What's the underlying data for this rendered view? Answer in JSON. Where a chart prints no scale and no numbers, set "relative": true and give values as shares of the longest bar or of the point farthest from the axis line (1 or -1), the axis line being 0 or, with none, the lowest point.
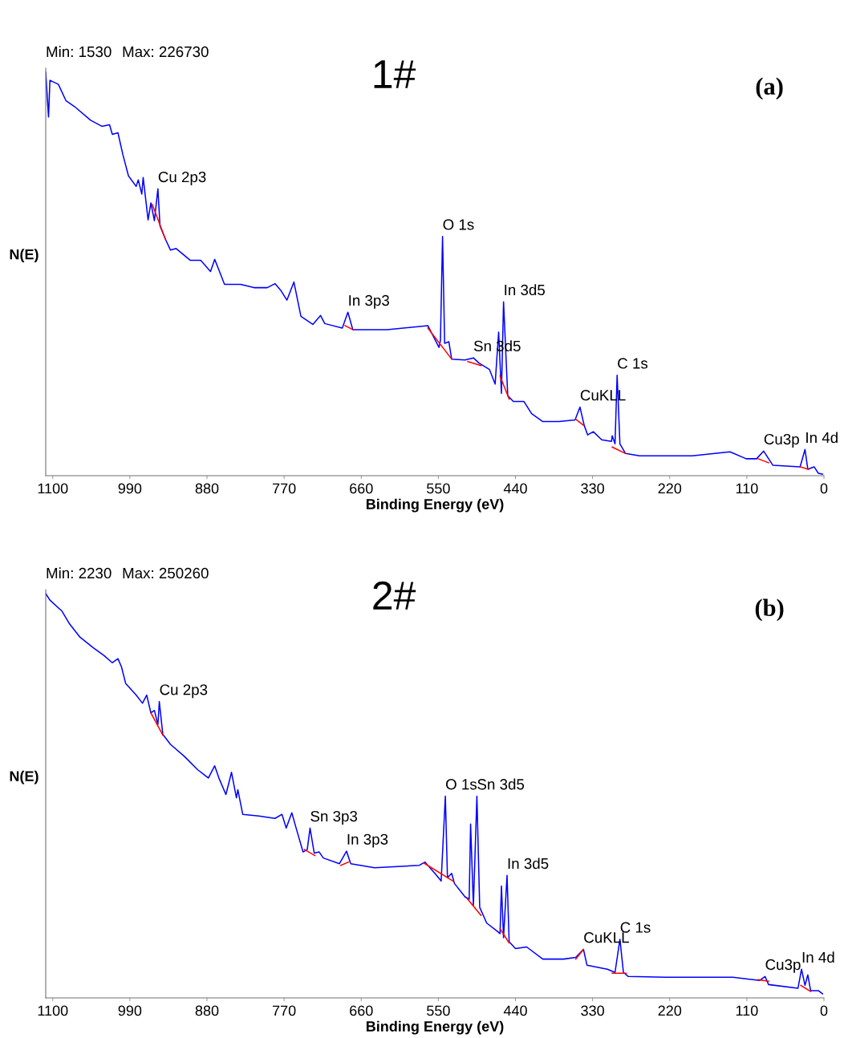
{
  "chart_data": [
    {
      "type": "line",
      "title": "1#",
      "xlabel": "Binding Energy (eV)",
      "ylabel": "N(E)",
      "relative": true,
      "xlim": [
        1110,
        0
      ],
      "xticks": [
        1100,
        990,
        880,
        770,
        660,
        550,
        440,
        330,
        220,
        110,
        0
      ],
      "grid": false,
      "legend": false,
      "marker": "none",
      "line_style": "solid",
      "series": [
        {
          "color": "#0000ff",
          "x": [
            1110,
            1106,
            1104,
            1092,
            1081,
            1069,
            1046,
            1030,
            1019,
            1015,
            1007,
            1000,
            992,
            981,
            978,
            973,
            971,
            964,
            960,
            955,
            950,
            947,
            939,
            932,
            924,
            904,
            889,
            875,
            869,
            863,
            855,
            832,
            813,
            794,
            783,
            775,
            766,
            756,
            746,
            729,
            718,
            712,
            687,
            679,
            672,
            623,
            565,
            549,
            547,
            544,
            541,
            535,
            531,
            512,
            500,
            492,
            477,
            469,
            464,
            460,
            457,
            451,
            443,
            428,
            417,
            401,
            378,
            355,
            348,
            342,
            337,
            329,
            317,
            303,
            302,
            298,
            295,
            291,
            283,
            263,
            188,
            134,
            111,
            96,
            86,
            73,
            34,
            27,
            23,
            14,
            8,
            2
          ],
          "values": [
            1.0,
            0.889,
            0.98,
            0.97,
            0.929,
            0.915,
            0.881,
            0.866,
            0.87,
            0.846,
            0.85,
            0.796,
            0.743,
            0.717,
            0.733,
            0.698,
            0.739,
            0.634,
            0.676,
            0.632,
            0.711,
            0.619,
            0.585,
            0.559,
            0.563,
            0.534,
            0.534,
            0.506,
            0.536,
            0.51,
            0.474,
            0.474,
            0.466,
            0.466,
            0.476,
            0.46,
            0.435,
            0.48,
            0.395,
            0.375,
            0.397,
            0.377,
            0.366,
            0.405,
            0.362,
            0.362,
            0.372,
            0.318,
            0.336,
            0.593,
            0.328,
            0.332,
            0.289,
            0.287,
            0.292,
            0.279,
            0.263,
            0.227,
            0.356,
            0.204,
            0.431,
            0.198,
            0.184,
            0.184,
            0.154,
            0.134,
            0.134,
            0.138,
            0.17,
            0.125,
            0.101,
            0.109,
            0.089,
            0.085,
            0.099,
            0.079,
            0.249,
            0.079,
            0.055,
            0.049,
            0.049,
            0.059,
            0.042,
            0.042,
            0.061,
            0.026,
            0.022,
            0.065,
            0.016,
            0.022,
            0.006,
            0.004
          ]
        },
        {
          "color": "#ff0000",
          "x": [
            958,
            939,
            null,
            683,
            672,
            null,
            565,
            531,
            null,
            508,
            489,
            null,
            462,
            449,
            null,
            354,
            343,
            null,
            302,
            283,
            null,
            94,
            79,
            null,
            34,
            22
          ],
          "values": [
            0.672,
            0.585,
            null,
            0.372,
            0.362,
            null,
            0.366,
            0.289,
            null,
            0.283,
            0.273,
            null,
            0.247,
            0.19,
            null,
            0.14,
            0.125,
            null,
            0.071,
            0.055,
            null,
            0.042,
            0.032,
            null,
            0.022,
            0.016
          ]
        }
      ],
      "annotations": [
        "Min: 1530",
        "Max: 226730",
        "(a)",
        {
          "text": "Cu 2p3",
          "x": 950,
          "y": 0.711
        },
        {
          "text": "O 1s",
          "x": 544,
          "y": 0.593
        },
        {
          "text": "In 3p3",
          "x": 679,
          "y": 0.405
        },
        {
          "text": "In 3d5",
          "x": 457,
          "y": 0.431
        },
        {
          "text": "Sn 3d5",
          "x": 500,
          "y": 0.292
        },
        {
          "text": "C 1s",
          "x": 295,
          "y": 0.249
        },
        {
          "text": "CuKLL",
          "x": 348,
          "y": 0.17
        },
        {
          "text": "Cu3p",
          "x": 86,
          "y": 0.061
        },
        {
          "text": "In 4d",
          "x": 27,
          "y": 0.065
        }
      ]
    },
    {
      "type": "line",
      "title": "2#",
      "xlabel": "Binding Energy (eV)",
      "ylabel": "N(E)",
      "relative": true,
      "xlim": [
        1110,
        0
      ],
      "xticks": [
        1100,
        990,
        880,
        770,
        660,
        550,
        440,
        330,
        220,
        110,
        0
      ],
      "grid": false,
      "legend": false,
      "marker": "none",
      "line_style": "solid",
      "series": [
        {
          "color": "#0000ff",
          "x": [
            1110,
            1104,
            1087,
            1076,
            1061,
            1042,
            1027,
            1015,
            1007,
            1002,
            996,
            981,
            972,
            966,
            960,
            955,
            950,
            948,
            943,
            932,
            912,
            893,
            878,
            869,
            863,
            853,
            845,
            838,
            836,
            829,
            806,
            783,
            773,
            767,
            759,
            752,
            743,
            737,
            733,
            727,
            720,
            714,
            691,
            681,
            675,
            641,
            577,
            569,
            554,
            546,
            540,
            537,
            531,
            527,
            512,
            506,
            504,
            500,
            495,
            491,
            481,
            466,
            462,
            460,
            457,
            452,
            449,
            440,
            424,
            401,
            371,
            354,
            343,
            338,
            309,
            298,
            291,
            286,
            279,
            226,
            130,
            92,
            84,
            79,
            37,
            32,
            27,
            23,
            19,
            8,
            2
          ],
          "values": [
            1.0,
            0.984,
            0.957,
            0.925,
            0.892,
            0.866,
            0.847,
            0.829,
            0.839,
            0.819,
            0.778,
            0.749,
            0.729,
            0.749,
            0.705,
            0.711,
            0.676,
            0.733,
            0.652,
            0.627,
            0.597,
            0.564,
            0.544,
            0.574,
            0.544,
            0.503,
            0.558,
            0.495,
            0.515,
            0.454,
            0.45,
            0.444,
            0.454,
            0.42,
            0.458,
            0.415,
            0.361,
            0.367,
            0.42,
            0.358,
            0.361,
            0.346,
            0.332,
            0.363,
            0.332,
            0.322,
            0.328,
            0.336,
            0.306,
            0.289,
            0.499,
            0.297,
            0.308,
            0.283,
            0.25,
            0.244,
            0.43,
            0.228,
            0.499,
            0.224,
            0.185,
            0.165,
            0.159,
            0.277,
            0.149,
            0.303,
            0.139,
            0.122,
            0.126,
            0.096,
            0.096,
            0.1,
            0.12,
            0.081,
            0.071,
            0.063,
            0.145,
            0.063,
            0.053,
            0.051,
            0.051,
            0.043,
            0.053,
            0.033,
            0.024,
            0.071,
            0.031,
            0.057,
            0.018,
            0.018,
            0.01
          ]
        },
        {
          "color": "#ff0000",
          "x": [
            960,
            943,
            null,
            741,
            726,
            null,
            689,
            678,
            null,
            571,
            529,
            null,
            509,
            489,
            null,
            462,
            449,
            null,
            354,
            343,
            null,
            302,
            282,
            null,
            94,
            79,
            null,
            33,
            19
          ],
          "values": [
            0.705,
            0.65,
            null,
            0.367,
            0.352,
            null,
            0.328,
            0.336,
            null,
            0.334,
            0.289,
            null,
            0.246,
            0.204,
            null,
            0.171,
            0.136,
            null,
            0.096,
            0.12,
            null,
            0.061,
            0.061,
            null,
            0.045,
            0.041,
            null,
            0.031,
            0.016
          ]
        }
      ],
      "annotations": [
        "Min: 2230",
        "Max: 250260",
        "(b)",
        {
          "text": "Cu 2p3",
          "x": 948,
          "y": 0.733
        },
        {
          "text": "O 1s",
          "x": 540,
          "y": 0.499
        },
        {
          "text": "Sn 3d5",
          "x": 495,
          "y": 0.499
        },
        {
          "text": "Sn 3p3",
          "x": 733,
          "y": 0.42
        },
        {
          "text": "In 3p3",
          "x": 681,
          "y": 0.363
        },
        {
          "text": "In 3d5",
          "x": 452,
          "y": 0.303
        },
        {
          "text": "C 1s",
          "x": 291,
          "y": 0.145
        },
        {
          "text": "CuKLL",
          "x": 343,
          "y": 0.12
        },
        {
          "text": "Cu3p",
          "x": 84,
          "y": 0.053
        },
        {
          "text": "In 4d",
          "x": 32,
          "y": 0.071
        }
      ]
    }
  ]
}
